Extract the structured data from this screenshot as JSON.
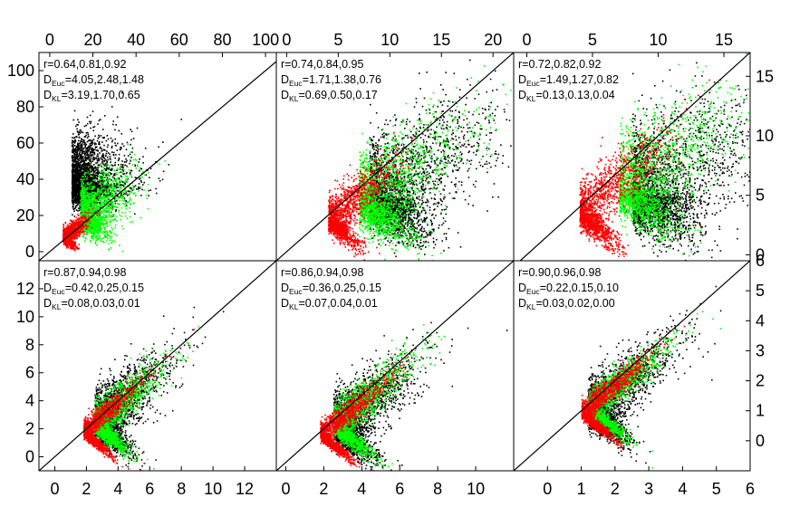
{
  "chart_data": [
    {
      "type": "scatter",
      "panel": "top-left",
      "x_axis_position": "top",
      "y_axis_position": "left",
      "xlim": [
        -5,
        105
      ],
      "ylim": [
        -5,
        110
      ],
      "xticks": [
        "0",
        "20",
        "40",
        "60",
        "80",
        "100"
      ],
      "xtick_values": [
        0,
        20,
        40,
        60,
        80,
        100
      ],
      "yticks": [
        "0",
        "20",
        "40",
        "60",
        "80",
        "100"
      ],
      "ytick_values": [
        0,
        20,
        40,
        60,
        80,
        100
      ],
      "annotations": [
        {
          "prefix": "r",
          "sub": "",
          "values": "=0.64,0.81,0.92"
        },
        {
          "prefix": "D",
          "sub": "Euc",
          "values": "=4.05,2.48,1.48"
        },
        {
          "prefix": "D",
          "sub": "KL",
          "values": "=3.19,1.70,0.65"
        }
      ],
      "identity_line": true,
      "series": [
        {
          "color": "#000000",
          "center": [
            10,
            38
          ],
          "spread": [
            14,
            14
          ],
          "corr": 0.1
        },
        {
          "color": "#00ff00",
          "center": [
            14,
            20
          ],
          "spread": [
            12,
            12
          ],
          "corr": 0.7
        },
        {
          "color": "#ff0000",
          "center": [
            6,
            8
          ],
          "spread": [
            5,
            5
          ],
          "corr": 0.85
        }
      ]
    },
    {
      "type": "scatter",
      "panel": "top-middle",
      "x_axis_position": "top",
      "y_axis_position": "none",
      "xlim": [
        -1,
        22
      ],
      "ylim": [
        -1,
        22
      ],
      "xticks": [
        "0",
        "5",
        "10",
        "15",
        "20"
      ],
      "xtick_values": [
        0,
        5,
        10,
        15,
        20
      ],
      "yticks": [],
      "ytick_values": [],
      "annotations": [
        {
          "prefix": "r",
          "sub": "",
          "values": "=0.74,0.84,0.95"
        },
        {
          "prefix": "D",
          "sub": "Euc",
          "values": "=1.71,1.38,0.76"
        },
        {
          "prefix": "D",
          "sub": "KL",
          "values": "=0.69,0.50,0.17"
        }
      ],
      "identity_line": true,
      "series": [
        {
          "color": "#000000",
          "center": [
            8,
            6
          ],
          "spread": [
            6,
            5
          ],
          "corr": 0.75
        },
        {
          "color": "#00ff00",
          "center": [
            7,
            5.5
          ],
          "spread": [
            5,
            4.5
          ],
          "corr": 0.8
        },
        {
          "color": "#ff0000",
          "center": [
            4,
            3.5
          ],
          "spread": [
            3,
            3
          ],
          "corr": 0.9
        }
      ]
    },
    {
      "type": "scatter",
      "panel": "top-right",
      "x_axis_position": "top",
      "y_axis_position": "right",
      "xlim": [
        -1,
        17
      ],
      "ylim": [
        -0.5,
        17
      ],
      "xticks": [
        "0",
        "5",
        "10",
        "15"
      ],
      "xtick_values": [
        0,
        5,
        10,
        15
      ],
      "yticks": [
        "0",
        "5",
        "10",
        "15"
      ],
      "ytick_values": [
        0,
        5,
        10,
        15
      ],
      "annotations": [
        {
          "prefix": "r",
          "sub": "",
          "values": "=0.72,0.82,0.92"
        },
        {
          "prefix": "D",
          "sub": "Euc",
          "values": "=1.49,1.27,0.82"
        },
        {
          "prefix": "D",
          "sub": "KL",
          "values": "=0.13,0.13,0.04"
        }
      ],
      "identity_line": true,
      "series": [
        {
          "color": "#000000",
          "center": [
            8,
            5
          ],
          "spread": [
            5,
            4
          ],
          "corr": 0.65
        },
        {
          "color": "#00ff00",
          "center": [
            7,
            5.5
          ],
          "spread": [
            4.5,
            4
          ],
          "corr": 0.8
        },
        {
          "color": "#ff0000",
          "center": [
            4,
            3.5
          ],
          "spread": [
            3,
            3
          ],
          "corr": 0.9
        }
      ]
    },
    {
      "type": "scatter",
      "panel": "bottom-left",
      "x_axis_position": "bottom",
      "y_axis_position": "left",
      "xlim": [
        -1,
        14
      ],
      "ylim": [
        -1,
        14
      ],
      "xticks": [
        "0",
        "2",
        "4",
        "6",
        "8",
        "10",
        "12"
      ],
      "xtick_values": [
        0,
        2,
        4,
        6,
        8,
        10,
        12
      ],
      "yticks": [
        "0",
        "2",
        "4",
        "6",
        "8",
        "10",
        "12"
      ],
      "ytick_values": [
        0,
        2,
        4,
        6,
        8,
        10,
        12
      ],
      "annotations": [
        {
          "prefix": "r",
          "sub": "",
          "values": "=0.87,0.94,0.98"
        },
        {
          "prefix": "D",
          "sub": "Euc",
          "values": "=0.42,0.25,0.15"
        },
        {
          "prefix": "D",
          "sub": "KL",
          "values": "=0.08,0.03,0.01"
        }
      ],
      "identity_line": true,
      "series": [
        {
          "color": "#000000",
          "center": [
            2.5,
            2.5
          ],
          "spread": [
            2.2,
            2.2
          ],
          "corr": 0.85
        },
        {
          "color": "#00ff00",
          "center": [
            2.5,
            2.4
          ],
          "spread": [
            2,
            2
          ],
          "corr": 0.93
        },
        {
          "color": "#ff0000",
          "center": [
            1.8,
            1.8
          ],
          "spread": [
            1.6,
            1.6
          ],
          "corr": 0.97
        }
      ]
    },
    {
      "type": "scatter",
      "panel": "bottom-middle",
      "x_axis_position": "bottom",
      "y_axis_position": "none",
      "xlim": [
        -0.5,
        12
      ],
      "ylim": [
        -0.5,
        12
      ],
      "xticks": [
        "0",
        "2",
        "4",
        "6",
        "8",
        "10"
      ],
      "xtick_values": [
        0,
        2,
        4,
        6,
        8,
        10
      ],
      "yticks": [],
      "ytick_values": [],
      "annotations": [
        {
          "prefix": "r",
          "sub": "",
          "values": "=0.86,0.94,0.98"
        },
        {
          "prefix": "D",
          "sub": "Euc",
          "values": "=0.36,0.25,0.15"
        },
        {
          "prefix": "D",
          "sub": "KL",
          "values": "=0.07,0.04,0.01"
        }
      ],
      "identity_line": true,
      "series": [
        {
          "color": "#000000",
          "center": [
            2.5,
            2.2
          ],
          "spread": [
            2.2,
            2
          ],
          "corr": 0.85
        },
        {
          "color": "#00ff00",
          "center": [
            2.5,
            2.3
          ],
          "spread": [
            2,
            1.9
          ],
          "corr": 0.94
        },
        {
          "color": "#ff0000",
          "center": [
            1.8,
            1.7
          ],
          "spread": [
            1.6,
            1.5
          ],
          "corr": 0.97
        }
      ]
    },
    {
      "type": "scatter",
      "panel": "bottom-right",
      "x_axis_position": "bottom",
      "y_axis_position": "right",
      "xlim": [
        -1,
        6
      ],
      "ylim": [
        -1,
        6
      ],
      "xticks": [
        "0",
        "1",
        "2",
        "3",
        "4",
        "5",
        "6"
      ],
      "xtick_values": [
        0,
        1,
        2,
        3,
        4,
        5,
        6
      ],
      "yticks": [
        "0",
        "1",
        "2",
        "3",
        "4",
        "5",
        "6"
      ],
      "ytick_values": [
        0,
        1,
        2,
        3,
        4,
        5,
        6
      ],
      "annotations": [
        {
          "prefix": "r",
          "sub": "",
          "values": "=0.90,0.96,0.98"
        },
        {
          "prefix": "D",
          "sub": "Euc",
          "values": "=0.22,0.15,0.10"
        },
        {
          "prefix": "D",
          "sub": "KL",
          "values": "=0.03,0.02,0.00"
        }
      ],
      "identity_line": true,
      "series": [
        {
          "color": "#000000",
          "center": [
            1.2,
            1.0
          ],
          "spread": [
            1.2,
            1.1
          ],
          "corr": 0.88
        },
        {
          "color": "#00ff00",
          "center": [
            1.2,
            1.1
          ],
          "spread": [
            1.1,
            1.0
          ],
          "corr": 0.95
        },
        {
          "color": "#ff0000",
          "center": [
            1.0,
            0.95
          ],
          "spread": [
            0.9,
            0.85
          ],
          "corr": 0.97
        }
      ]
    }
  ]
}
